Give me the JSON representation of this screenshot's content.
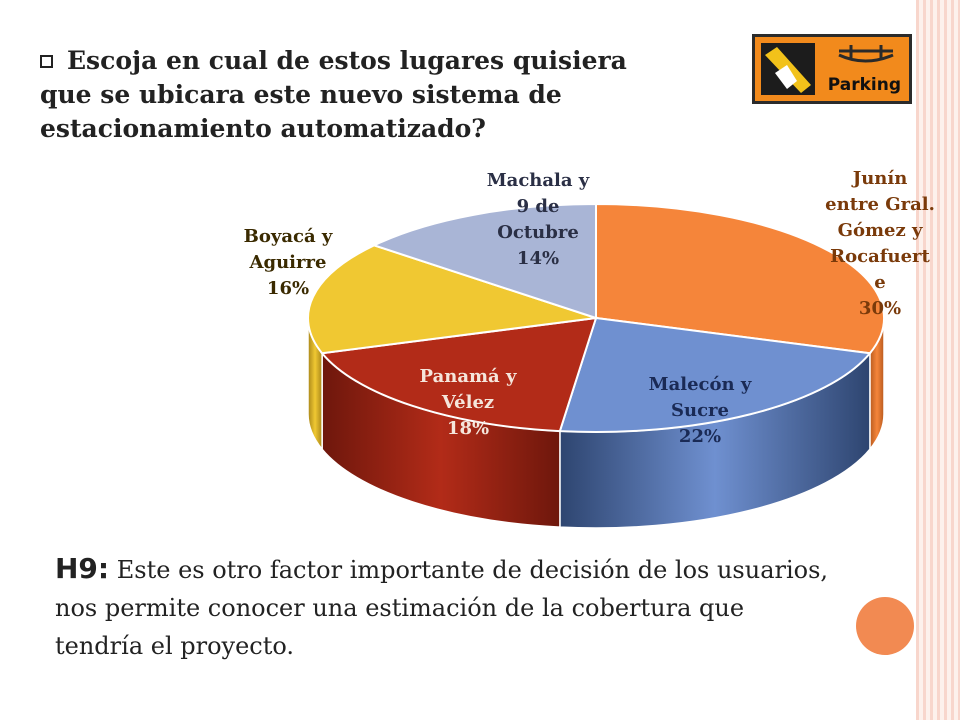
{
  "heading": {
    "line1": "Escoja en cual de estos lugares quisiera",
    "line2": "que se ubicara este nuevo sistema de",
    "line3": "estacionamiento automatizado?"
  },
  "logo": {
    "text": "Parking",
    "icon": "parking-sign-icon"
  },
  "chart_data": {
    "type": "pie",
    "style": "3d",
    "slices": [
      {
        "label": [
          "Junín",
          "entre Gral.",
          "Gómez y",
          "Rocafuert",
          "e"
        ],
        "value": 30,
        "pct_label": "30%",
        "color": "#f5853a",
        "side_color": "#b85a1e"
      },
      {
        "label": [
          "Malecón y",
          "Sucre"
        ],
        "value": 22,
        "pct_label": "22%",
        "color": "#6f90d0",
        "side_color": "#2e4570"
      },
      {
        "label": [
          "Panamá y",
          "Vélez"
        ],
        "value": 18,
        "pct_label": "18%",
        "color": "#b22b18",
        "side_color": "#6e170c"
      },
      {
        "label": [
          "Boyacá y",
          "Aguirre"
        ],
        "value": 16,
        "pct_label": "16%",
        "color": "#f0c832",
        "side_color": "#a8861a"
      },
      {
        "label": [
          "Machala y",
          "9 de",
          "Octubre"
        ],
        "value": 14,
        "pct_label": "14%",
        "color": "#a9b5d6",
        "side_color": "#6b7699"
      }
    ]
  },
  "footer": {
    "tag": "H9:",
    "text": " Este es otro factor importante de decisión de los usuarios, nos permite conocer una estimación de la cobertura que tendría el proyecto."
  }
}
